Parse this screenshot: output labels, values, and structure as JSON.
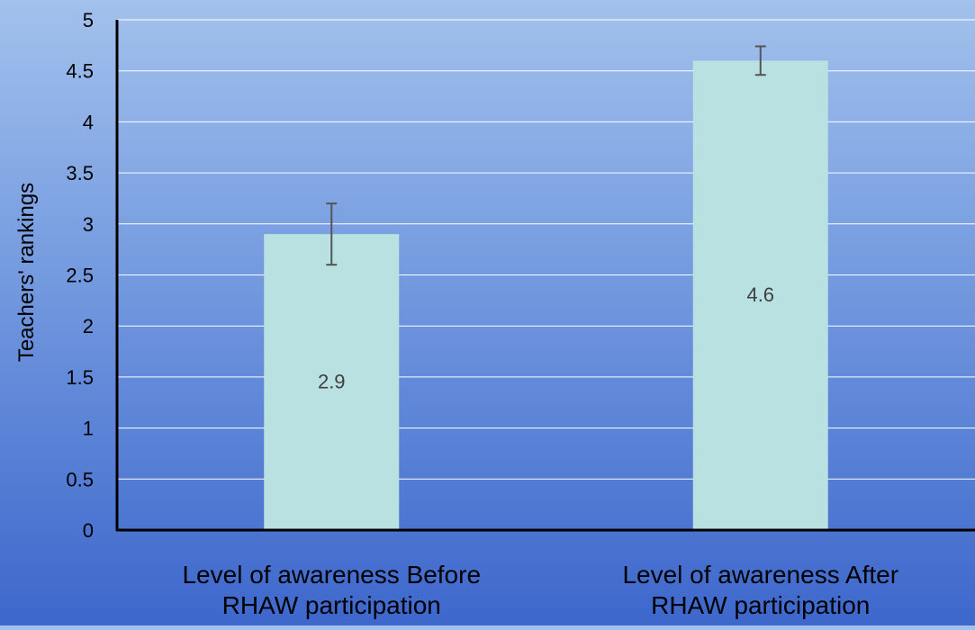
{
  "chart_data": {
    "type": "bar",
    "title": "",
    "xlabel": "",
    "ylabel": "Teachers' rankings",
    "ylim": [
      0,
      5
    ],
    "yticks": [
      0,
      0.5,
      1,
      1.5,
      2,
      2.5,
      3,
      3.5,
      4,
      4.5,
      5
    ],
    "ytick_labels": [
      "0",
      "0.5",
      "1",
      "1.5",
      "2",
      "2.5",
      "3",
      "3.5",
      "4",
      "4.5",
      "5"
    ],
    "grid": true,
    "categories": [
      [
        "Level of awareness Before",
        "RHAW participation"
      ],
      [
        "Level of awareness After",
        "RHAW participation"
      ]
    ],
    "values": [
      2.9,
      4.6
    ],
    "data_labels": [
      "2.9",
      "4.6"
    ],
    "error_bars": [
      {
        "low": 2.6,
        "high": 3.2
      },
      {
        "low": 4.46,
        "high": 4.74
      }
    ],
    "colors": {
      "bar": "#b9e1e1",
      "axis": "#000000",
      "grid": "#ffffff",
      "error_bar": "#555555",
      "label": "#404040",
      "text": "#000000"
    }
  }
}
